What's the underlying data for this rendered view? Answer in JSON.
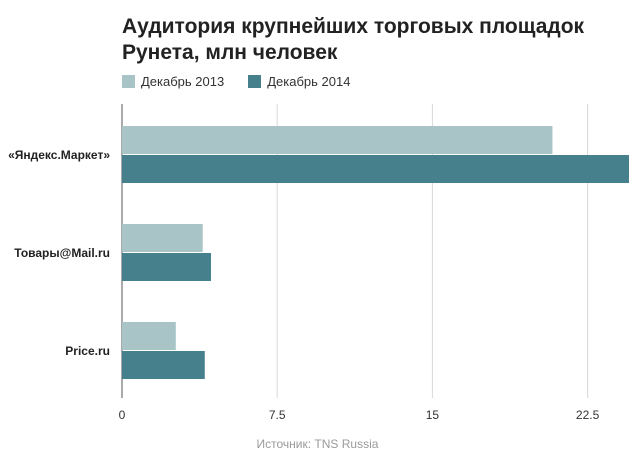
{
  "chart_data": {
    "type": "bar",
    "orientation": "horizontal",
    "title": "Аудитория крупнейших торговых площадок Рунета, млн человек",
    "categories": [
      "«Яндекс.Маркет»",
      "Товары@Mail.ru",
      "Price.ru"
    ],
    "series": [
      {
        "name": "Декабрь 2013",
        "color": "#a8c4c6",
        "values": [
          20.8,
          3.9,
          2.6
        ]
      },
      {
        "name": "Декабрь 2014",
        "color": "#46808c",
        "values": [
          24.5,
          4.3,
          4.0
        ]
      }
    ],
    "xlim": [
      0,
      24.5
    ],
    "xticks": [
      0,
      7.5,
      15,
      22.5
    ],
    "xtick_labels": [
      "0",
      "7.5",
      "15",
      "22.5"
    ],
    "grid": true,
    "legend_position": "top-left",
    "source": "Источник: TNS Russia"
  }
}
